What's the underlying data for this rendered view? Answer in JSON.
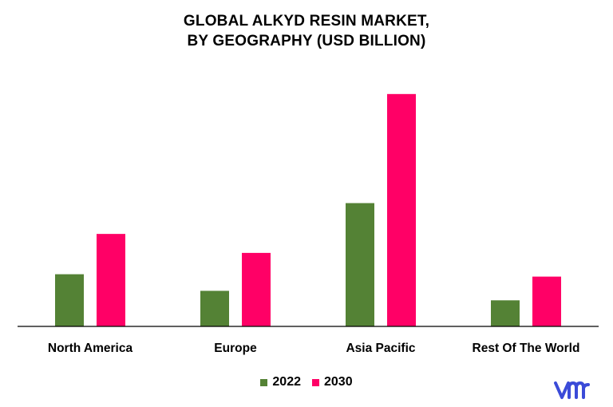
{
  "chart_data": {
    "type": "bar",
    "title_lines": [
      "GLOBAL ALKYD RESIN MARKET,",
      "BY GEOGRAPHY (USD BILLION)"
    ],
    "categories": [
      "North America",
      "Europe",
      "Asia Pacific",
      "Rest Of The World"
    ],
    "series": [
      {
        "name": "2022",
        "color": "#548235",
        "values": [
          2.2,
          1.5,
          5.2,
          1.1
        ]
      },
      {
        "name": "2030",
        "color": "#FF0066",
        "values": [
          3.9,
          3.1,
          9.8,
          2.1
        ]
      }
    ],
    "ylim": [
      0,
      10.4
    ],
    "grid": false,
    "legend_position": "bottom",
    "xlabel": "",
    "ylabel": ""
  },
  "logo": {
    "icon": "vmr-logo-icon",
    "color": "#3B4BD8"
  }
}
